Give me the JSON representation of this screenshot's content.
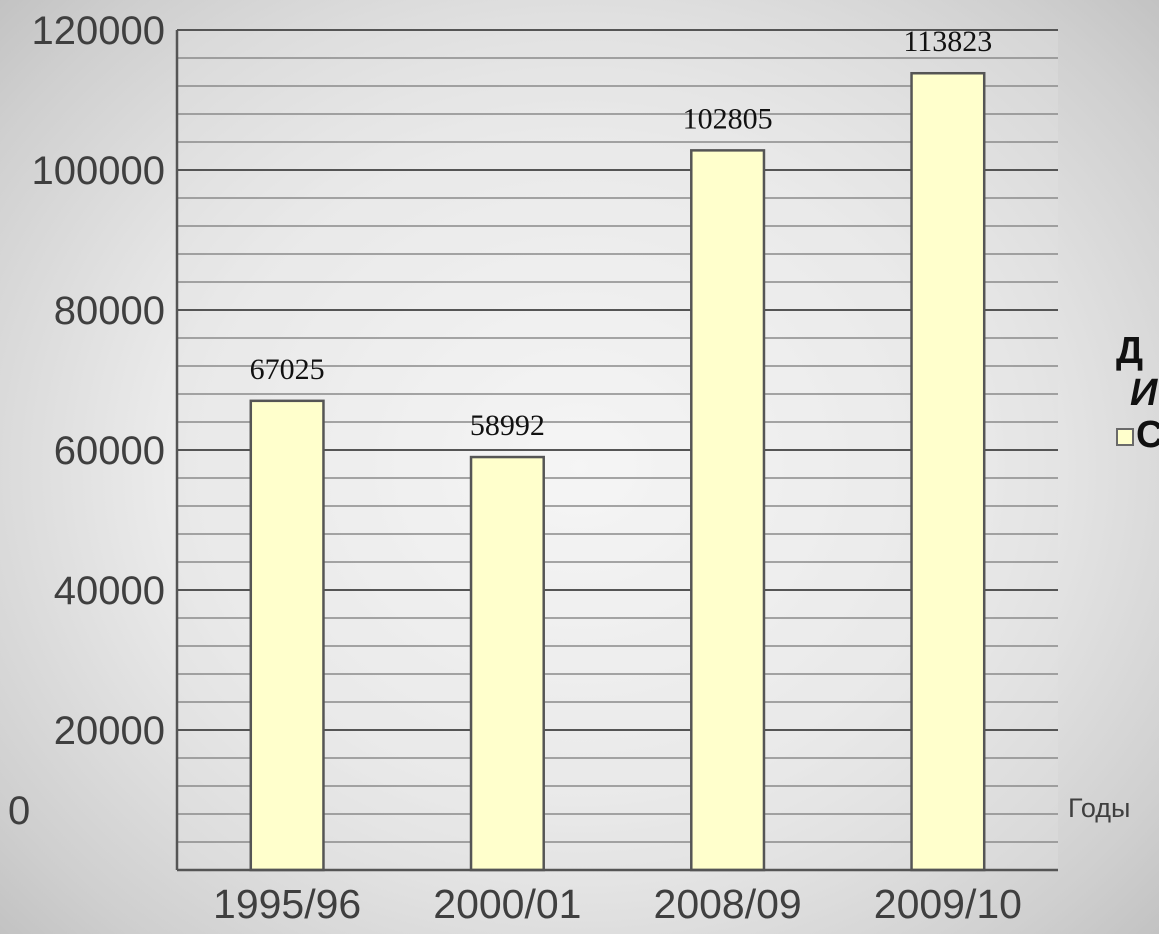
{
  "chart_data": {
    "type": "bar",
    "categories": [
      "1995/96",
      "2000/01",
      "2008/09",
      "2009/10"
    ],
    "values": [
      67025,
      58992,
      102805,
      113823
    ],
    "data_labels": [
      "67025",
      "58992",
      "102805",
      "113823"
    ],
    "ylim": [
      0,
      120000
    ],
    "yticks": [
      "0",
      "20000",
      "40000",
      "60000",
      "80000",
      "100000",
      "120000"
    ],
    "minor_grid_step": 4000,
    "x_unit_label": "Годы",
    "legend_fragments": [
      "Д",
      "И",
      "С"
    ],
    "legend_position": "right",
    "grid": true,
    "bar_color": "#ffffcc",
    "bar_border_color": "#555555",
    "grid_color": "#8a8a8a"
  }
}
